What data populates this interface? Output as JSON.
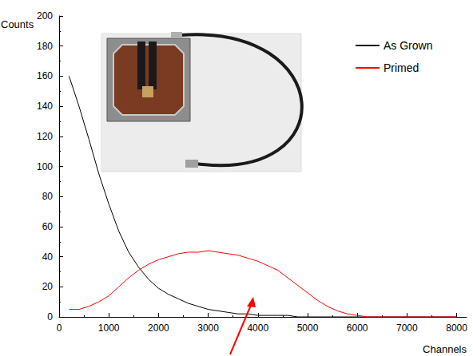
{
  "chart_data": {
    "type": "line",
    "x_label": "Channels",
    "y_label": "Counts",
    "x": [
      200,
      400,
      600,
      800,
      1000,
      1200,
      1400,
      1600,
      1800,
      2000,
      2200,
      2400,
      2600,
      2800,
      3000,
      3200,
      3400,
      3600,
      3800,
      4000,
      4200,
      4400,
      4600,
      4800,
      5000,
      5200,
      5400,
      5600,
      5800,
      6000,
      6200,
      6400,
      6600,
      6800,
      7000,
      7200,
      7400,
      7600,
      7800,
      8000
    ],
    "series": [
      {
        "name": "As Grown",
        "color": "#000000",
        "values": [
          160,
          140,
          118,
          95,
          75,
          57,
          43,
          33,
          25,
          19,
          15,
          12,
          9,
          7,
          5,
          4,
          3,
          2,
          2,
          1,
          1,
          1,
          1,
          0,
          0,
          0,
          0,
          0,
          0,
          0,
          0,
          0,
          0,
          0,
          0,
          0,
          0,
          0,
          0,
          0
        ]
      },
      {
        "name": "Primed",
        "color": "#ff0000",
        "values": [
          5,
          5,
          7,
          10,
          14,
          20,
          26,
          31,
          35,
          38,
          40,
          42,
          43,
          43,
          44,
          43,
          42,
          41,
          39,
          37,
          34,
          31,
          26,
          21,
          16,
          11,
          7,
          4,
          2,
          1,
          0,
          0,
          0,
          0,
          0,
          0,
          0,
          0,
          0,
          0
        ]
      }
    ],
    "xlim": [
      0,
      8200
    ],
    "xticks": [
      0,
      1000,
      2000,
      3000,
      4000,
      5000,
      6000,
      7000,
      8000
    ],
    "ylim": [
      0,
      200
    ],
    "yticks": [
      0,
      20,
      40,
      60,
      80,
      100,
      120,
      140,
      160,
      180,
      200
    ],
    "grid": false,
    "legend": "upper right"
  }
}
